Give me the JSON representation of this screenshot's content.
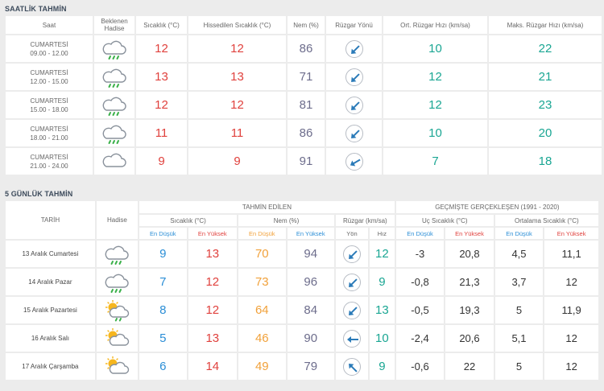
{
  "hourly": {
    "title": "SAATLİK TAHMİN",
    "headers": {
      "time": "Saat",
      "phenomenon": "Beklenen Hadise",
      "temp": "Sıcaklık (°C)",
      "feels": "Hissedilen Sıcaklık (°C)",
      "humidity": "Nem (%)",
      "wind_dir": "Rüzgar Yönü",
      "wind_avg": "Ort. Rüzgar Hızı (km/sa)",
      "wind_max": "Maks. Rüzgar Hızı (km/sa)"
    },
    "rows": [
      {
        "day": "CUMARTESİ",
        "range": "09.00 - 12.00",
        "icon": "cloud-rain-icon",
        "temp": "12",
        "feels": "12",
        "humidity": "86",
        "wind_deg": 225,
        "wind_avg": "10",
        "wind_max": "22"
      },
      {
        "day": "CUMARTESİ",
        "range": "12.00 - 15.00",
        "icon": "cloud-rain-icon",
        "temp": "13",
        "feels": "13",
        "humidity": "71",
        "wind_deg": 225,
        "wind_avg": "12",
        "wind_max": "21"
      },
      {
        "day": "CUMARTESİ",
        "range": "15.00 - 18.00",
        "icon": "cloud-rain-icon",
        "temp": "12",
        "feels": "12",
        "humidity": "81",
        "wind_deg": 225,
        "wind_avg": "12",
        "wind_max": "23"
      },
      {
        "day": "CUMARTESİ",
        "range": "18.00 - 21.00",
        "icon": "cloud-rain-icon",
        "temp": "11",
        "feels": "11",
        "humidity": "86",
        "wind_deg": 225,
        "wind_avg": "10",
        "wind_max": "20"
      },
      {
        "day": "CUMARTESİ",
        "range": "21.00 - 24.00",
        "icon": "cloud-icon",
        "temp": "9",
        "feels": "9",
        "humidity": "91",
        "wind_deg": 240,
        "wind_avg": "7",
        "wind_max": "18"
      }
    ]
  },
  "daily": {
    "title": "5 GÜNLÜK TAHMİN",
    "headers": {
      "date": "TARİH",
      "phenomenon": "Hadise",
      "forecast": "TAHMİN EDİLEN",
      "history": "GEÇMİŞTE GERÇEKLEŞEN (1991 - 2020)",
      "temp": "Sıcaklık (°C)",
      "humidity": "Nem (%)",
      "wind": "Rüzgar (km/sa)",
      "extreme": "Uç Sıcaklık (°C)",
      "average": "Ortalama Sıcaklık (°C)",
      "min": "En Düşük",
      "max": "En Yüksek",
      "dir": "Yön",
      "speed": "Hız"
    },
    "rows": [
      {
        "date": "13 Aralık Cumartesi",
        "icon": "cloud-rain-icon",
        "t_min": "9",
        "t_max": "13",
        "h_min": "70",
        "h_max": "94",
        "wind_deg": 225,
        "wind_speed": "12",
        "ext_min": "-3",
        "ext_max": "20,8",
        "avg_min": "4,5",
        "avg_max": "11,1"
      },
      {
        "date": "14 Aralık Pazar",
        "icon": "cloud-rain-icon",
        "t_min": "7",
        "t_max": "12",
        "h_min": "73",
        "h_max": "96",
        "wind_deg": 225,
        "wind_speed": "9",
        "ext_min": "-0,8",
        "ext_max": "21,3",
        "avg_min": "3,7",
        "avg_max": "12"
      },
      {
        "date": "15 Aralık Pazartesi",
        "icon": "sun-cloud-rain-icon",
        "t_min": "8",
        "t_max": "12",
        "h_min": "64",
        "h_max": "84",
        "wind_deg": 225,
        "wind_speed": "13",
        "ext_min": "-0,5",
        "ext_max": "19,3",
        "avg_min": "5",
        "avg_max": "11,9"
      },
      {
        "date": "16 Aralık Salı",
        "icon": "sun-cloud-icon",
        "t_min": "5",
        "t_max": "13",
        "h_min": "46",
        "h_max": "90",
        "wind_deg": 270,
        "wind_speed": "10",
        "ext_min": "-2,4",
        "ext_max": "20,6",
        "avg_min": "5,1",
        "avg_max": "12"
      },
      {
        "date": "17 Aralık Çarşamba",
        "icon": "sun-cloud-icon",
        "t_min": "6",
        "t_max": "14",
        "h_min": "49",
        "h_max": "79",
        "wind_deg": 315,
        "wind_speed": "9",
        "ext_min": "-0,6",
        "ext_max": "22",
        "avg_min": "5",
        "avg_max": "12"
      }
    ]
  }
}
